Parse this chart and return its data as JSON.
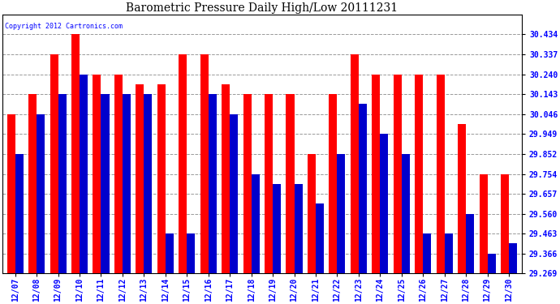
{
  "title": "Barometric Pressure Daily High/Low 20111231",
  "copyright": "Copyright 2012 Cartronics.com",
  "dates": [
    "12/07",
    "12/08",
    "12/09",
    "12/10",
    "12/11",
    "12/12",
    "12/13",
    "12/14",
    "12/15",
    "12/16",
    "12/17",
    "12/18",
    "12/19",
    "12/20",
    "12/21",
    "12/22",
    "12/23",
    "12/24",
    "12/25",
    "12/26",
    "12/27",
    "12/28",
    "12/29",
    "12/30"
  ],
  "highs": [
    30.046,
    30.143,
    30.337,
    30.434,
    30.24,
    30.24,
    30.191,
    30.191,
    30.337,
    30.337,
    30.191,
    30.143,
    30.143,
    30.143,
    29.852,
    30.143,
    30.337,
    30.24,
    30.24,
    30.24,
    30.24,
    29.997,
    29.754,
    29.754
  ],
  "lows": [
    29.852,
    30.046,
    30.143,
    30.24,
    30.143,
    30.143,
    30.143,
    29.463,
    29.463,
    30.143,
    30.046,
    29.754,
    29.706,
    29.706,
    29.609,
    29.852,
    30.095,
    29.949,
    29.852,
    29.463,
    29.463,
    29.56,
    29.366,
    29.415
  ],
  "ylim_min": 29.269,
  "ylim_max": 30.531,
  "yticks": [
    30.434,
    30.337,
    30.24,
    30.143,
    30.046,
    29.949,
    29.852,
    29.754,
    29.657,
    29.56,
    29.463,
    29.366,
    29.269
  ],
  "high_color": "#ff0000",
  "low_color": "#0000cc",
  "bg_color": "#ffffff",
  "grid_color": "#999999",
  "title_fontsize": 10,
  "tick_fontsize": 7,
  "bar_width": 0.38
}
